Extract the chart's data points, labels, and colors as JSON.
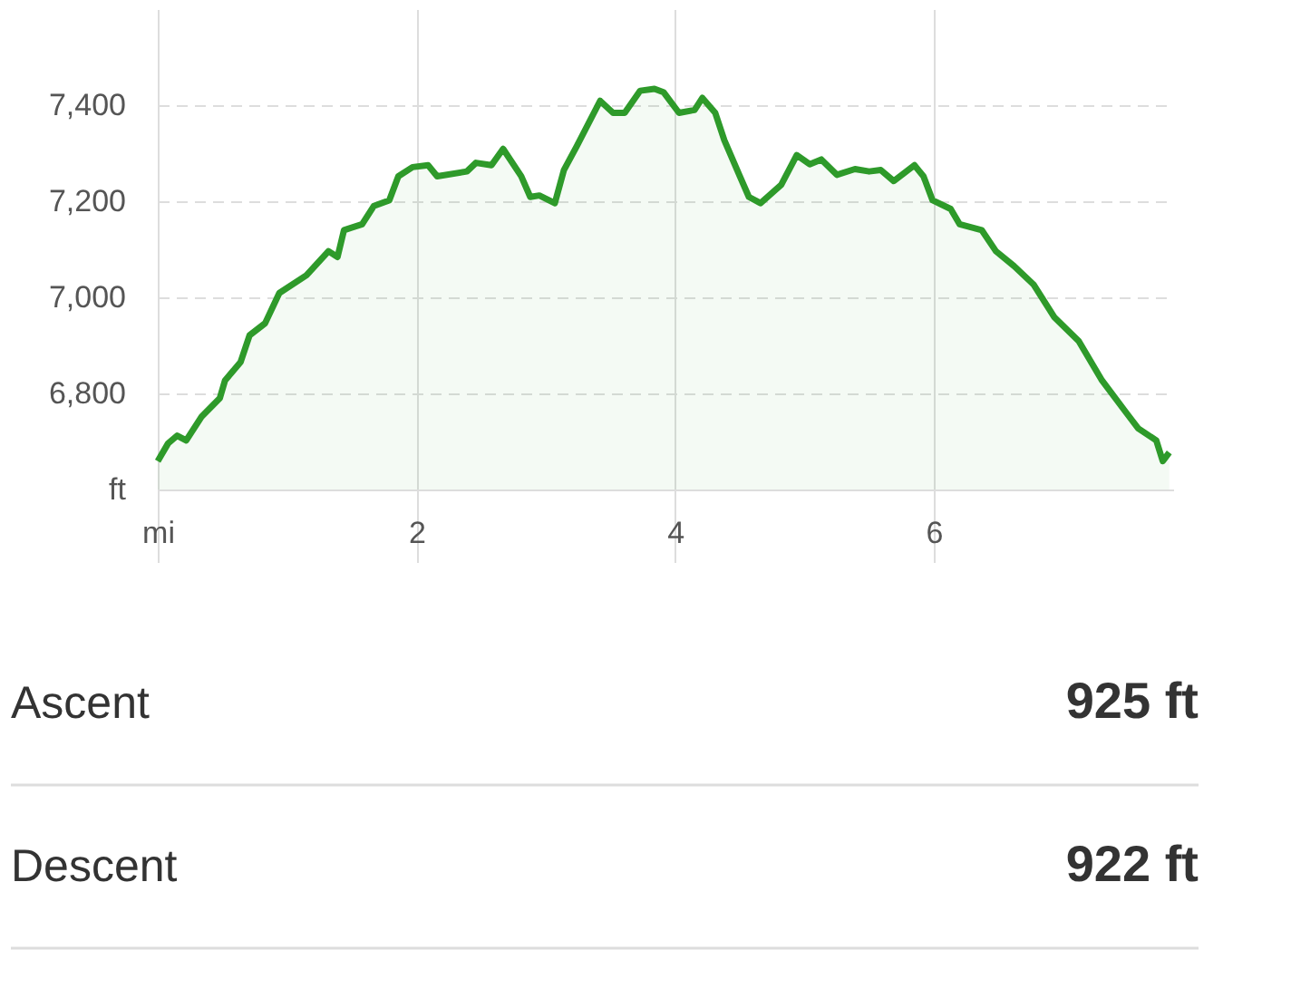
{
  "chart_data": {
    "type": "area",
    "x": [
      0,
      0.08,
      0.15,
      0.22,
      0.34,
      0.48,
      0.52,
      0.64,
      0.71,
      0.83,
      0.94,
      1.15,
      1.32,
      1.39,
      1.44,
      1.58,
      1.67,
      1.79,
      1.86,
      1.97,
      2.09,
      2.16,
      2.39,
      2.46,
      2.58,
      2.67,
      2.81,
      2.88,
      2.95,
      3.07,
      3.14,
      3.24,
      3.42,
      3.52,
      3.61,
      3.73,
      3.84,
      3.91,
      4.03,
      4.15,
      4.21,
      4.31,
      4.38,
      4.5,
      4.57,
      4.66,
      4.82,
      4.94,
      5.04,
      5.13,
      5.25,
      5.39,
      5.5,
      5.59,
      5.69,
      5.85,
      5.92,
      5.99,
      6.13,
      6.2,
      6.37,
      6.48,
      6.62,
      6.77,
      6.93,
      7.12,
      7.3,
      7.49,
      7.58,
      7.72,
      7.77,
      7.82
    ],
    "series": [
      {
        "color": "#2e9a2a",
        "values": [
          6659,
          6696,
          6712,
          6702,
          6752,
          6790,
          6827,
          6865,
          6921,
          6946,
          7009,
          7046,
          7096,
          7084,
          7140,
          7152,
          7190,
          7202,
          7252,
          7271,
          7275,
          7252,
          7262,
          7280,
          7275,
          7309,
          7252,
          7209,
          7212,
          7196,
          7265,
          7315,
          7409,
          7384,
          7384,
          7430,
          7434,
          7427,
          7384,
          7390,
          7415,
          7384,
          7327,
          7252,
          7209,
          7196,
          7234,
          7296,
          7277,
          7287,
          7255,
          7267,
          7262,
          7265,
          7242,
          7275,
          7252,
          7202,
          7184,
          7152,
          7140,
          7096,
          7065,
          7027,
          6959,
          6909,
          6827,
          6759,
          6727,
          6702,
          6659,
          6677
        ]
      }
    ],
    "xlim": [
      0,
      7.85
    ],
    "xticks": [
      {
        "value": 0,
        "label": "mi"
      },
      2,
      4,
      6
    ],
    "ylim": [
      6600,
      7600
    ],
    "yticks": [
      {
        "value": 6600,
        "label": "ft"
      },
      {
        "value": 6800,
        "label": "6,800"
      },
      {
        "value": 7000,
        "label": "7,000"
      },
      {
        "value": 7200,
        "label": "7,200"
      },
      {
        "value": 7400,
        "label": "7,400"
      }
    ],
    "grid": true,
    "annotations": [
      "Ascent",
      "925 ft",
      "Descent",
      "922 ft"
    ]
  }
}
